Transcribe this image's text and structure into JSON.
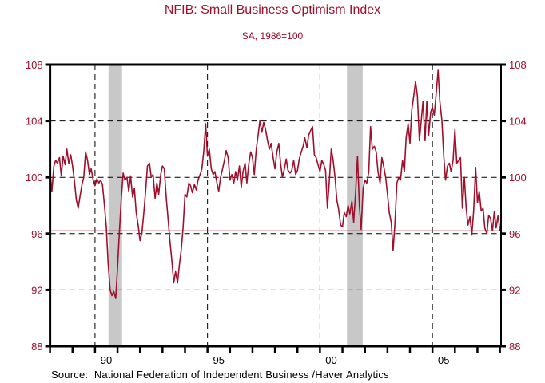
{
  "chart_data": {
    "type": "line",
    "title": "NFIB: Small Business Optimism Index",
    "subtitle": "SA, 1986=100",
    "source": "Source:  National Federation of Independent Business /Haver Analytics",
    "xlabel": "",
    "ylabel": "",
    "xlim": [
      1988,
      2008.1
    ],
    "ylim": [
      88,
      108
    ],
    "yticks": [
      88,
      92,
      96,
      100,
      104,
      108
    ],
    "ytick_labels": [
      "88",
      "92",
      "96",
      "100",
      "104",
      "108"
    ],
    "xticks_major": [
      1990,
      1995,
      2000,
      2005
    ],
    "xtick_labels": [
      "90",
      "95",
      "00",
      "05"
    ],
    "xticks_minor_years": [
      1988,
      1989,
      1990,
      1991,
      1992,
      1993,
      1994,
      1995,
      1996,
      1997,
      1998,
      1999,
      2000,
      2001,
      2002,
      2003,
      2004,
      2005,
      2006,
      2007,
      2008
    ],
    "grid": "dashed at y ticks and x major ticks",
    "reference_line": {
      "value": 96.2,
      "color": "#a0102c"
    },
    "recessions": [
      [
        1990.6,
        1991.2
      ],
      [
        2001.2,
        2001.9
      ]
    ],
    "recession_color": "#c8c8c8",
    "line_color": "#a0102c",
    "series": [
      {
        "name": "Small Business Optimism Index",
        "points": [
          [
            1988.0,
            100.4
          ],
          [
            1988.08,
            99.0
          ],
          [
            1988.17,
            100.8
          ],
          [
            1988.25,
            101.2
          ],
          [
            1988.33,
            101.0
          ],
          [
            1988.42,
            101.4
          ],
          [
            1988.5,
            100.1
          ],
          [
            1988.58,
            101.5
          ],
          [
            1988.67,
            100.9
          ],
          [
            1988.75,
            102.0
          ],
          [
            1988.83,
            101.0
          ],
          [
            1988.92,
            101.6
          ],
          [
            1989.0,
            100.8
          ],
          [
            1989.08,
            99.8
          ],
          [
            1989.17,
            98.4
          ],
          [
            1989.25,
            97.8
          ],
          [
            1989.33,
            98.6
          ],
          [
            1989.42,
            99.5
          ],
          [
            1989.5,
            100.0
          ],
          [
            1989.58,
            101.8
          ],
          [
            1989.67,
            101.2
          ],
          [
            1989.75,
            100.2
          ],
          [
            1989.83,
            100.6
          ],
          [
            1989.92,
            99.8
          ],
          [
            1990.0,
            99.4
          ],
          [
            1990.08,
            99.9
          ],
          [
            1990.17,
            99.6
          ],
          [
            1990.25,
            99.8
          ],
          [
            1990.33,
            99.5
          ],
          [
            1990.42,
            98.0
          ],
          [
            1990.5,
            96.5
          ],
          [
            1990.58,
            94.0
          ],
          [
            1990.67,
            92.0
          ],
          [
            1990.75,
            91.6
          ],
          [
            1990.83,
            91.9
          ],
          [
            1990.92,
            91.4
          ],
          [
            1991.0,
            93.5
          ],
          [
            1991.08,
            96.0
          ],
          [
            1991.17,
            98.5
          ],
          [
            1991.25,
            100.3
          ],
          [
            1991.33,
            99.8
          ],
          [
            1991.42,
            100.0
          ],
          [
            1991.5,
            99.0
          ],
          [
            1991.58,
            100.1
          ],
          [
            1991.67,
            98.6
          ],
          [
            1991.75,
            99.2
          ],
          [
            1991.83,
            97.5
          ],
          [
            1991.92,
            96.6
          ],
          [
            1992.0,
            95.5
          ],
          [
            1992.08,
            96.0
          ],
          [
            1992.17,
            97.5
          ],
          [
            1992.25,
            99.0
          ],
          [
            1992.33,
            100.8
          ],
          [
            1992.42,
            101.0
          ],
          [
            1992.5,
            100.0
          ],
          [
            1992.58,
            100.2
          ],
          [
            1992.67,
            98.5
          ],
          [
            1992.75,
            99.6
          ],
          [
            1992.83,
            98.8
          ],
          [
            1992.92,
            100.2
          ],
          [
            1993.0,
            100.8
          ],
          [
            1993.08,
            100.6
          ],
          [
            1993.17,
            98.5
          ],
          [
            1993.25,
            97.0
          ],
          [
            1993.33,
            95.5
          ],
          [
            1993.42,
            94.0
          ],
          [
            1993.5,
            92.5
          ],
          [
            1993.58,
            93.3
          ],
          [
            1993.67,
            92.5
          ],
          [
            1993.75,
            93.8
          ],
          [
            1993.83,
            94.8
          ],
          [
            1993.92,
            96.5
          ],
          [
            1994.0,
            98.8
          ],
          [
            1994.08,
            98.6
          ],
          [
            1994.17,
            99.6
          ],
          [
            1994.25,
            99.4
          ],
          [
            1994.33,
            98.9
          ],
          [
            1994.42,
            99.5
          ],
          [
            1994.5,
            99.1
          ],
          [
            1994.58,
            99.8
          ],
          [
            1994.67,
            100.2
          ],
          [
            1994.75,
            100.6
          ],
          [
            1994.83,
            101.8
          ],
          [
            1994.92,
            103.8
          ],
          [
            1995.0,
            101.5
          ],
          [
            1995.08,
            102.0
          ],
          [
            1995.17,
            100.6
          ],
          [
            1995.25,
            100.2
          ],
          [
            1995.33,
            100.4
          ],
          [
            1995.42,
            99.6
          ],
          [
            1995.5,
            99.0
          ],
          [
            1995.58,
            100.0
          ],
          [
            1995.67,
            100.6
          ],
          [
            1995.75,
            101.2
          ],
          [
            1995.83,
            101.9
          ],
          [
            1995.92,
            101.4
          ],
          [
            1996.0,
            99.8
          ],
          [
            1996.08,
            100.2
          ],
          [
            1996.17,
            99.6
          ],
          [
            1996.25,
            100.4
          ],
          [
            1996.33,
            99.8
          ],
          [
            1996.42,
            100.8
          ],
          [
            1996.5,
            99.3
          ],
          [
            1996.58,
            100.4
          ],
          [
            1996.67,
            101.0
          ],
          [
            1996.75,
            99.6
          ],
          [
            1996.83,
            100.9
          ],
          [
            1996.92,
            101.8
          ],
          [
            1997.0,
            101.4
          ],
          [
            1997.08,
            100.2
          ],
          [
            1997.17,
            102.0
          ],
          [
            1997.25,
            103.0
          ],
          [
            1997.33,
            104.0
          ],
          [
            1997.42,
            103.2
          ],
          [
            1997.5,
            103.9
          ],
          [
            1997.58,
            103.4
          ],
          [
            1997.67,
            102.6
          ],
          [
            1997.75,
            102.0
          ],
          [
            1997.83,
            102.4
          ],
          [
            1997.92,
            101.4
          ],
          [
            1998.0,
            100.6
          ],
          [
            1998.08,
            101.8
          ],
          [
            1998.17,
            102.4
          ],
          [
            1998.25,
            101.0
          ],
          [
            1998.33,
            100.0
          ],
          [
            1998.42,
            100.6
          ],
          [
            1998.5,
            101.3
          ],
          [
            1998.58,
            100.5
          ],
          [
            1998.67,
            100.3
          ],
          [
            1998.75,
            100.5
          ],
          [
            1998.83,
            101.2
          ],
          [
            1998.92,
            100.2
          ],
          [
            1999.0,
            100.5
          ],
          [
            1999.08,
            101.3
          ],
          [
            1999.17,
            101.8
          ],
          [
            1999.25,
            102.2
          ],
          [
            1999.33,
            102.8
          ],
          [
            1999.42,
            102.1
          ],
          [
            1999.5,
            103.0
          ],
          [
            1999.58,
            103.3
          ],
          [
            1999.67,
            103.6
          ],
          [
            1999.75,
            101.6
          ],
          [
            1999.83,
            101.4
          ],
          [
            2000.0,
            100.4
          ],
          [
            2000.08,
            101.2
          ],
          [
            2000.17,
            100.9
          ],
          [
            2000.25,
            100.5
          ],
          [
            2000.33,
            97.8
          ],
          [
            2000.42,
            99.8
          ],
          [
            2000.5,
            102.0
          ],
          [
            2000.58,
            101.3
          ],
          [
            2000.67,
            100.0
          ],
          [
            2000.75,
            98.4
          ],
          [
            2000.83,
            97.7
          ],
          [
            2000.92,
            96.6
          ],
          [
            2001.0,
            96.5
          ],
          [
            2001.08,
            97.5
          ],
          [
            2001.17,
            97.2
          ],
          [
            2001.25,
            98.0
          ],
          [
            2001.33,
            97.4
          ],
          [
            2001.42,
            98.3
          ],
          [
            2001.5,
            96.8
          ],
          [
            2001.58,
            98.8
          ],
          [
            2001.67,
            101.5
          ],
          [
            2001.75,
            98.0
          ],
          [
            2001.83,
            96.3
          ],
          [
            2001.92,
            99.2
          ],
          [
            2002.0,
            99.8
          ],
          [
            2002.08,
            99.6
          ],
          [
            2002.17,
            100.4
          ],
          [
            2002.25,
            103.6
          ],
          [
            2002.33,
            102.0
          ],
          [
            2002.42,
            102.2
          ],
          [
            2002.5,
            101.8
          ],
          [
            2002.58,
            100.4
          ],
          [
            2002.67,
            99.6
          ],
          [
            2002.75,
            101.4
          ],
          [
            2002.83,
            100.8
          ],
          [
            2002.92,
            100.0
          ],
          [
            2003.0,
            98.8
          ],
          [
            2003.08,
            97.5
          ],
          [
            2003.17,
            96.8
          ],
          [
            2003.25,
            94.8
          ],
          [
            2003.33,
            96.6
          ],
          [
            2003.42,
            99.6
          ],
          [
            2003.5,
            100.0
          ],
          [
            2003.58,
            99.8
          ],
          [
            2003.67,
            101.2
          ],
          [
            2003.75,
            100.4
          ],
          [
            2003.83,
            102.8
          ],
          [
            2003.92,
            103.8
          ],
          [
            2004.0,
            102.4
          ],
          [
            2004.08,
            104.8
          ],
          [
            2004.17,
            105.8
          ],
          [
            2004.25,
            106.8
          ],
          [
            2004.33,
            105.8
          ],
          [
            2004.42,
            102.6
          ],
          [
            2004.5,
            104.0
          ],
          [
            2004.58,
            105.4
          ],
          [
            2004.67,
            102.6
          ],
          [
            2004.75,
            105.4
          ],
          [
            2004.83,
            103.0
          ],
          [
            2004.92,
            104.6
          ],
          [
            2005.0,
            105.0
          ],
          [
            2005.08,
            104.4
          ],
          [
            2005.17,
            106.0
          ],
          [
            2005.25,
            107.6
          ],
          [
            2005.33,
            105.4
          ],
          [
            2005.42,
            104.0
          ],
          [
            2005.5,
            101.6
          ],
          [
            2005.58,
            99.8
          ],
          [
            2005.67,
            100.8
          ],
          [
            2005.75,
            101.0
          ],
          [
            2005.83,
            100.4
          ],
          [
            2005.92,
            101.2
          ],
          [
            2006.0,
            103.4
          ],
          [
            2006.08,
            101.0
          ],
          [
            2006.17,
            101.2
          ],
          [
            2006.25,
            101.4
          ],
          [
            2006.33,
            97.8
          ],
          [
            2006.42,
            100.0
          ],
          [
            2006.5,
            97.8
          ],
          [
            2006.58,
            96.6
          ],
          [
            2006.67,
            97.2
          ],
          [
            2006.75,
            95.9
          ],
          [
            2006.83,
            97.6
          ],
          [
            2006.92,
            100.7
          ],
          [
            2007.0,
            98.2
          ],
          [
            2007.08,
            99.0
          ],
          [
            2007.17,
            97.6
          ],
          [
            2007.25,
            97.8
          ],
          [
            2007.33,
            96.4
          ],
          [
            2007.42,
            96.0
          ],
          [
            2007.5,
            97.3
          ],
          [
            2007.58,
            97.1
          ],
          [
            2007.67,
            96.2
          ],
          [
            2007.75,
            97.6
          ],
          [
            2007.83,
            96.4
          ],
          [
            2007.92,
            97.3
          ],
          [
            2008.0,
            96.2
          ]
        ]
      }
    ]
  }
}
